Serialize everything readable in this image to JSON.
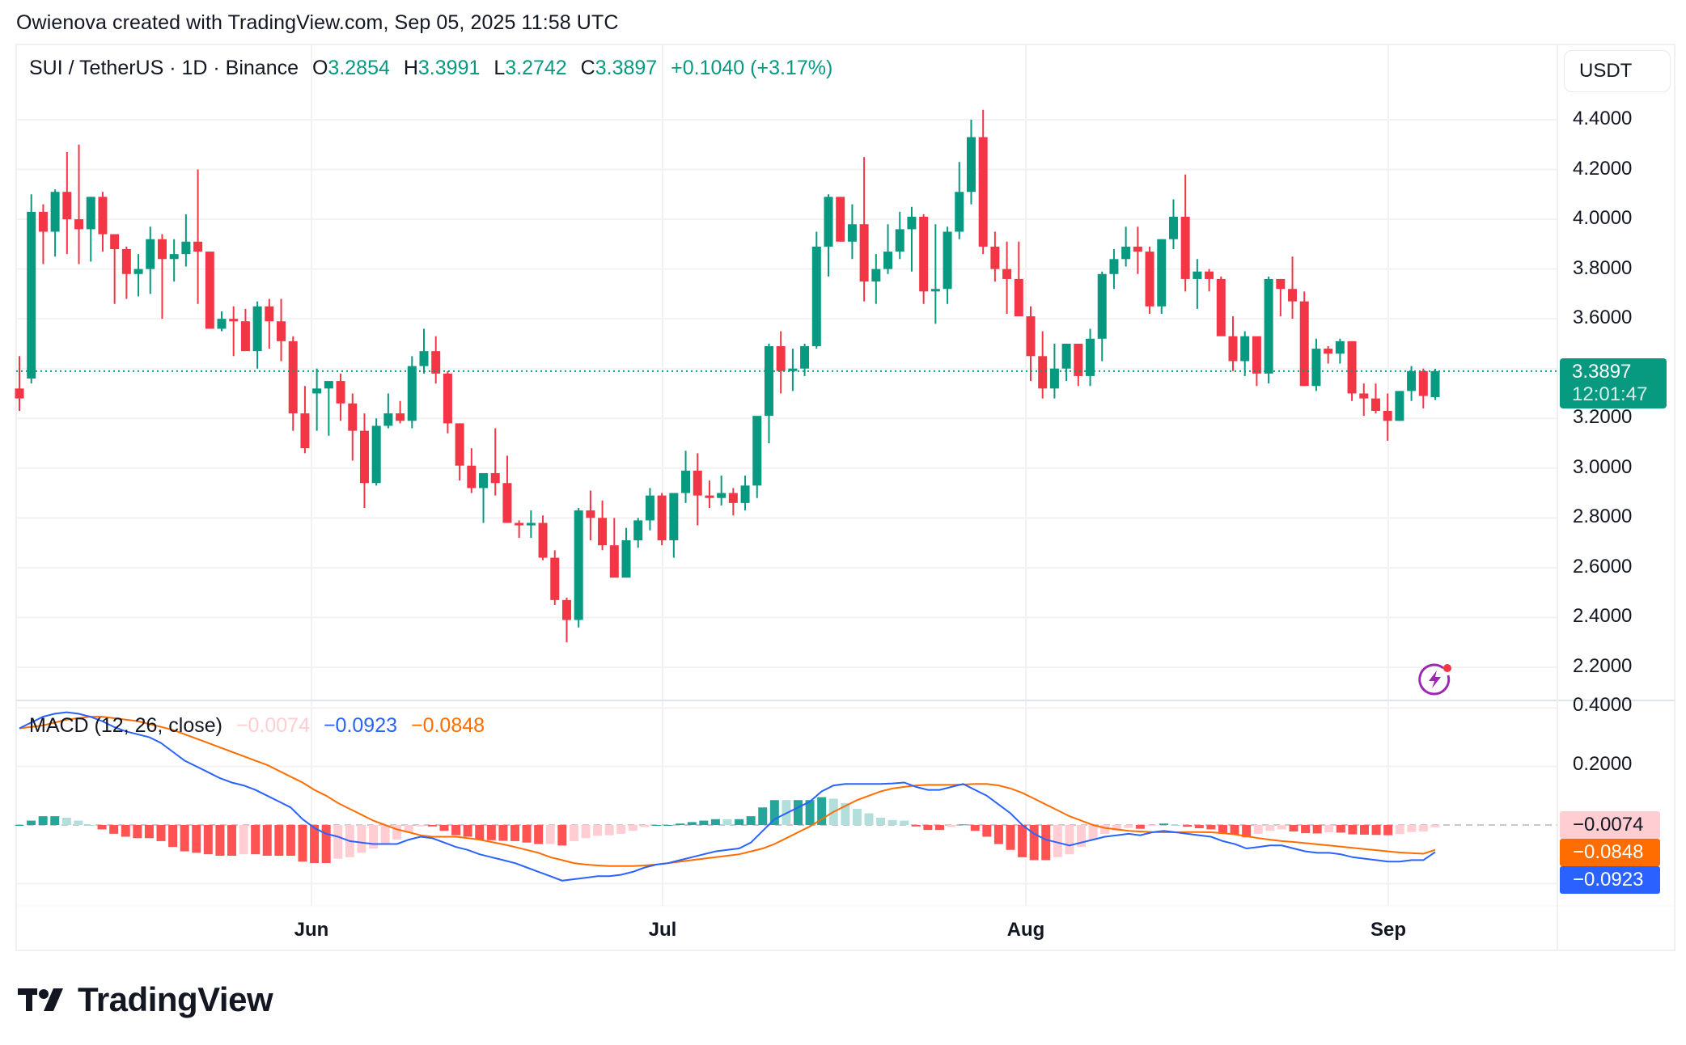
{
  "header": {
    "credit": "Owienova created with TradingView.com, Sep 05, 2025 11:58 UTC"
  },
  "symbol": {
    "name": "SUI / TetherUS · 1D · Binance",
    "o_label": "O",
    "o_value": "3.2854",
    "h_label": "H",
    "h_value": "3.3991",
    "l_label": "L",
    "l_value": "3.2742",
    "c_label": "C",
    "c_value": "3.3897",
    "change": "+0.1040 (+3.17%)"
  },
  "currency_button": "USDT",
  "price_axis": {
    "ticks": [
      "4.4000",
      "4.2000",
      "4.0000",
      "3.8000",
      "3.6000",
      "3.2000",
      "3.0000",
      "2.8000",
      "2.6000",
      "2.4000",
      "2.2000"
    ],
    "last_price": "3.3897",
    "countdown": "12:01:47"
  },
  "macd": {
    "title": "MACD (12, 26, close)",
    "histogram_value": "−0.0074",
    "macd_value": "−0.0923",
    "signal_value": "−0.0848",
    "axis_ticks": [
      "0.4000",
      "0.2000"
    ],
    "tag_histogram": "−0.0074",
    "tag_signal": "−0.0848",
    "tag_macd": "−0.0923"
  },
  "time_axis": {
    "months": [
      "Jun",
      "Jul",
      "Aug",
      "Sep"
    ]
  },
  "logo": {
    "text": "TradingView"
  },
  "colors": {
    "up": "#089981",
    "down": "#f23645",
    "macd_line": "#2962ff",
    "signal_line": "#ff6d00",
    "hist_up_strong": "#26a69a",
    "hist_up_weak": "#b2dfdb",
    "hist_down_strong": "#ff5252",
    "hist_down_weak": "#ffcdd2",
    "grid": "#f2f2f2"
  },
  "chart_data": {
    "type": "candlestick",
    "title": "SUI / TetherUS · 1D · Binance",
    "xlabel": "",
    "ylabel": "USDT",
    "ylim": [
      2.1,
      4.5
    ],
    "x_ticks": [
      "Jun",
      "Jul",
      "Aug",
      "Sep"
    ],
    "y_ticks": [
      2.2,
      2.4,
      2.6,
      2.8,
      3.0,
      3.2,
      3.4,
      3.6,
      3.8,
      4.0,
      4.2,
      4.4
    ],
    "last": {
      "open": 3.2854,
      "high": 3.3991,
      "low": 3.2742,
      "close": 3.3897,
      "change": 0.104,
      "change_pct": 3.17
    },
    "candles_ohlc": [
      [
        3.32,
        3.45,
        3.23,
        3.28
      ],
      [
        3.36,
        4.1,
        3.34,
        4.03
      ],
      [
        4.03,
        4.06,
        3.82,
        3.95
      ],
      [
        3.95,
        4.12,
        3.85,
        4.11
      ],
      [
        4.11,
        4.27,
        3.86,
        4.0
      ],
      [
        4.0,
        4.3,
        3.82,
        3.96
      ],
      [
        3.96,
        4.09,
        3.83,
        4.09
      ],
      [
        4.09,
        4.11,
        3.87,
        3.94
      ],
      [
        3.94,
        3.94,
        3.66,
        3.88
      ],
      [
        3.88,
        3.89,
        3.68,
        3.78
      ],
      [
        3.78,
        3.86,
        3.69,
        3.8
      ],
      [
        3.8,
        3.97,
        3.7,
        3.92
      ],
      [
        3.92,
        3.94,
        3.6,
        3.84
      ],
      [
        3.84,
        3.92,
        3.75,
        3.86
      ],
      [
        3.86,
        4.02,
        3.81,
        3.91
      ],
      [
        3.91,
        4.2,
        3.66,
        3.87
      ],
      [
        3.87,
        3.87,
        3.62,
        3.56
      ],
      [
        3.56,
        3.63,
        3.55,
        3.6
      ],
      [
        3.6,
        3.65,
        3.45,
        3.59
      ],
      [
        3.59,
        3.64,
        3.48,
        3.47
      ],
      [
        3.47,
        3.67,
        3.4,
        3.65
      ],
      [
        3.65,
        3.68,
        3.48,
        3.59
      ],
      [
        3.59,
        3.68,
        3.43,
        3.51
      ],
      [
        3.51,
        3.53,
        3.15,
        3.22
      ],
      [
        3.22,
        3.33,
        3.06,
        3.08
      ],
      [
        3.3,
        3.4,
        3.15,
        3.32
      ],
      [
        3.32,
        3.34,
        3.13,
        3.35
      ],
      [
        3.35,
        3.38,
        3.19,
        3.26
      ],
      [
        3.26,
        3.3,
        3.03,
        3.15
      ],
      [
        3.15,
        3.22,
        2.84,
        2.94
      ],
      [
        2.94,
        3.2,
        2.93,
        3.17
      ],
      [
        3.17,
        3.3,
        3.16,
        3.22
      ],
      [
        3.22,
        3.27,
        3.18,
        3.19
      ],
      [
        3.19,
        3.45,
        3.16,
        3.41
      ],
      [
        3.41,
        3.56,
        3.38,
        3.47
      ],
      [
        3.47,
        3.53,
        3.34,
        3.38
      ],
      [
        3.38,
        3.39,
        3.14,
        3.18
      ],
      [
        3.18,
        3.18,
        2.95,
        3.01
      ],
      [
        3.01,
        3.08,
        2.9,
        2.92
      ],
      [
        2.92,
        2.97,
        2.78,
        2.98
      ],
      [
        2.98,
        3.16,
        2.89,
        2.94
      ],
      [
        2.94,
        3.05,
        2.82,
        2.78
      ],
      [
        2.78,
        2.79,
        2.72,
        2.77
      ],
      [
        2.77,
        2.83,
        2.72,
        2.78
      ],
      [
        2.78,
        2.81,
        2.63,
        2.64
      ],
      [
        2.64,
        2.67,
        2.45,
        2.47
      ],
      [
        2.47,
        2.48,
        2.3,
        2.39
      ],
      [
        2.39,
        2.84,
        2.36,
        2.83
      ],
      [
        2.83,
        2.91,
        2.71,
        2.8
      ],
      [
        2.8,
        2.87,
        2.67,
        2.69
      ],
      [
        2.69,
        2.8,
        2.57,
        2.56
      ],
      [
        2.56,
        2.76,
        2.58,
        2.71
      ],
      [
        2.71,
        2.8,
        2.68,
        2.79
      ],
      [
        2.79,
        2.92,
        2.75,
        2.89
      ],
      [
        2.89,
        2.9,
        2.69,
        2.71
      ],
      [
        2.71,
        2.82,
        2.64,
        2.9
      ],
      [
        2.9,
        3.07,
        2.86,
        2.99
      ],
      [
        2.99,
        3.06,
        2.77,
        2.89
      ],
      [
        2.89,
        2.95,
        2.84,
        2.88
      ],
      [
        2.88,
        2.97,
        2.85,
        2.9
      ],
      [
        2.9,
        2.92,
        2.81,
        2.86
      ],
      [
        2.86,
        2.97,
        2.83,
        2.93
      ],
      [
        2.93,
        3.18,
        2.88,
        3.21
      ],
      [
        3.21,
        3.5,
        3.1,
        3.49
      ],
      [
        3.49,
        3.55,
        3.3,
        3.39
      ],
      [
        3.39,
        3.48,
        3.31,
        3.4
      ],
      [
        3.4,
        3.5,
        3.37,
        3.49
      ],
      [
        3.49,
        3.95,
        3.48,
        3.89
      ],
      [
        3.89,
        4.1,
        3.77,
        4.09
      ],
      [
        4.09,
        4.09,
        3.91,
        3.91
      ],
      [
        3.91,
        4.06,
        3.84,
        3.98
      ],
      [
        3.98,
        4.25,
        3.67,
        3.75
      ],
      [
        3.75,
        3.86,
        3.66,
        3.8
      ],
      [
        3.8,
        3.98,
        3.78,
        3.87
      ],
      [
        3.87,
        4.03,
        3.84,
        3.96
      ],
      [
        3.96,
        4.05,
        3.79,
        4.01
      ],
      [
        4.01,
        4.02,
        3.66,
        3.71
      ],
      [
        3.71,
        3.98,
        3.58,
        3.72
      ],
      [
        3.72,
        3.97,
        3.66,
        3.95
      ],
      [
        3.95,
        4.23,
        3.92,
        4.11
      ],
      [
        4.11,
        4.4,
        4.06,
        4.33
      ],
      [
        4.33,
        4.44,
        3.86,
        3.89
      ],
      [
        3.89,
        3.95,
        3.75,
        3.8
      ],
      [
        3.8,
        3.91,
        3.62,
        3.76
      ],
      [
        3.76,
        3.91,
        3.7,
        3.61
      ],
      [
        3.61,
        3.65,
        3.35,
        3.45
      ],
      [
        3.45,
        3.55,
        3.28,
        3.32
      ],
      [
        3.32,
        3.5,
        3.28,
        3.4
      ],
      [
        3.4,
        3.5,
        3.35,
        3.5
      ],
      [
        3.5,
        3.48,
        3.33,
        3.37
      ],
      [
        3.37,
        3.56,
        3.33,
        3.52
      ],
      [
        3.52,
        3.79,
        3.43,
        3.78
      ],
      [
        3.78,
        3.88,
        3.72,
        3.84
      ],
      [
        3.84,
        3.97,
        3.81,
        3.89
      ],
      [
        3.89,
        3.97,
        3.78,
        3.87
      ],
      [
        3.87,
        3.89,
        3.62,
        3.65
      ],
      [
        3.65,
        3.92,
        3.62,
        3.92
      ],
      [
        3.92,
        4.08,
        3.88,
        4.01
      ],
      [
        4.01,
        4.18,
        3.71,
        3.76
      ],
      [
        3.76,
        3.84,
        3.64,
        3.79
      ],
      [
        3.79,
        3.8,
        3.71,
        3.76
      ],
      [
        3.76,
        3.77,
        3.61,
        3.53
      ],
      [
        3.53,
        3.61,
        3.39,
        3.43
      ],
      [
        3.43,
        3.55,
        3.37,
        3.53
      ],
      [
        3.53,
        3.51,
        3.33,
        3.38
      ],
      [
        3.38,
        3.77,
        3.34,
        3.76
      ],
      [
        3.76,
        3.76,
        3.61,
        3.72
      ],
      [
        3.72,
        3.85,
        3.6,
        3.67
      ],
      [
        3.67,
        3.71,
        3.33,
        3.33
      ],
      [
        3.33,
        3.52,
        3.31,
        3.48
      ],
      [
        3.48,
        3.49,
        3.42,
        3.46
      ],
      [
        3.46,
        3.52,
        3.42,
        3.51
      ],
      [
        3.51,
        3.51,
        3.27,
        3.3
      ],
      [
        3.3,
        3.34,
        3.21,
        3.28
      ],
      [
        3.28,
        3.34,
        3.22,
        3.23
      ],
      [
        3.23,
        3.3,
        3.11,
        3.19
      ],
      [
        3.19,
        3.3,
        3.19,
        3.31
      ],
      [
        3.31,
        3.41,
        3.27,
        3.39
      ],
      [
        3.39,
        3.4,
        3.24,
        3.29
      ],
      [
        3.2854,
        3.3991,
        3.2742,
        3.3897
      ]
    ],
    "macd_series": {
      "macd": [
        0.33,
        0.35,
        0.37,
        0.38,
        0.385,
        0.38,
        0.37,
        0.355,
        0.335,
        0.32,
        0.31,
        0.3,
        0.28,
        0.25,
        0.22,
        0.2,
        0.18,
        0.16,
        0.145,
        0.135,
        0.12,
        0.1,
        0.08,
        0.06,
        0.02,
        -0.01,
        -0.03,
        -0.04,
        -0.055,
        -0.06,
        -0.065,
        -0.065,
        -0.065,
        -0.05,
        -0.04,
        -0.045,
        -0.06,
        -0.075,
        -0.085,
        -0.1,
        -0.11,
        -0.12,
        -0.13,
        -0.145,
        -0.16,
        -0.175,
        -0.19,
        -0.185,
        -0.18,
        -0.175,
        -0.175,
        -0.17,
        -0.16,
        -0.145,
        -0.135,
        -0.13,
        -0.12,
        -0.11,
        -0.1,
        -0.09,
        -0.085,
        -0.08,
        -0.06,
        -0.02,
        0.02,
        0.04,
        0.06,
        0.08,
        0.115,
        0.135,
        0.14,
        0.14,
        0.14,
        0.14,
        0.142,
        0.145,
        0.13,
        0.12,
        0.12,
        0.13,
        0.14,
        0.12,
        0.1,
        0.07,
        0.04,
        0.0,
        -0.03,
        -0.05,
        -0.06,
        -0.07,
        -0.06,
        -0.05,
        -0.04,
        -0.035,
        -0.03,
        -0.035,
        -0.025,
        -0.02,
        -0.025,
        -0.03,
        -0.035,
        -0.04,
        -0.055,
        -0.065,
        -0.08,
        -0.075,
        -0.07,
        -0.07,
        -0.08,
        -0.09,
        -0.095,
        -0.095,
        -0.1,
        -0.11,
        -0.115,
        -0.12,
        -0.125,
        -0.125,
        -0.12,
        -0.12,
        -0.0923
      ],
      "signal": [
        0.33,
        0.335,
        0.34,
        0.35,
        0.36,
        0.365,
        0.37,
        0.37,
        0.365,
        0.36,
        0.355,
        0.345,
        0.335,
        0.325,
        0.31,
        0.295,
        0.28,
        0.265,
        0.25,
        0.235,
        0.22,
        0.205,
        0.185,
        0.165,
        0.145,
        0.12,
        0.1,
        0.075,
        0.055,
        0.035,
        0.015,
        0.0,
        -0.015,
        -0.025,
        -0.035,
        -0.04,
        -0.04,
        -0.04,
        -0.045,
        -0.05,
        -0.058,
        -0.066,
        -0.075,
        -0.085,
        -0.095,
        -0.11,
        -0.12,
        -0.13,
        -0.135,
        -0.138,
        -0.14,
        -0.14,
        -0.14,
        -0.138,
        -0.135,
        -0.13,
        -0.125,
        -0.12,
        -0.115,
        -0.11,
        -0.105,
        -0.1,
        -0.09,
        -0.08,
        -0.065,
        -0.045,
        -0.025,
        -0.005,
        0.02,
        0.045,
        0.065,
        0.085,
        0.1,
        0.115,
        0.125,
        0.13,
        0.135,
        0.137,
        0.137,
        0.137,
        0.138,
        0.14,
        0.14,
        0.135,
        0.125,
        0.11,
        0.09,
        0.07,
        0.05,
        0.03,
        0.015,
        0.0,
        -0.01,
        -0.015,
        -0.02,
        -0.022,
        -0.024,
        -0.025,
        -0.025,
        -0.024,
        -0.024,
        -0.025,
        -0.028,
        -0.032,
        -0.038,
        -0.045,
        -0.05,
        -0.055,
        -0.058,
        -0.062,
        -0.066,
        -0.07,
        -0.074,
        -0.078,
        -0.082,
        -0.086,
        -0.09,
        -0.094,
        -0.096,
        -0.098,
        -0.0848
      ]
    }
  }
}
